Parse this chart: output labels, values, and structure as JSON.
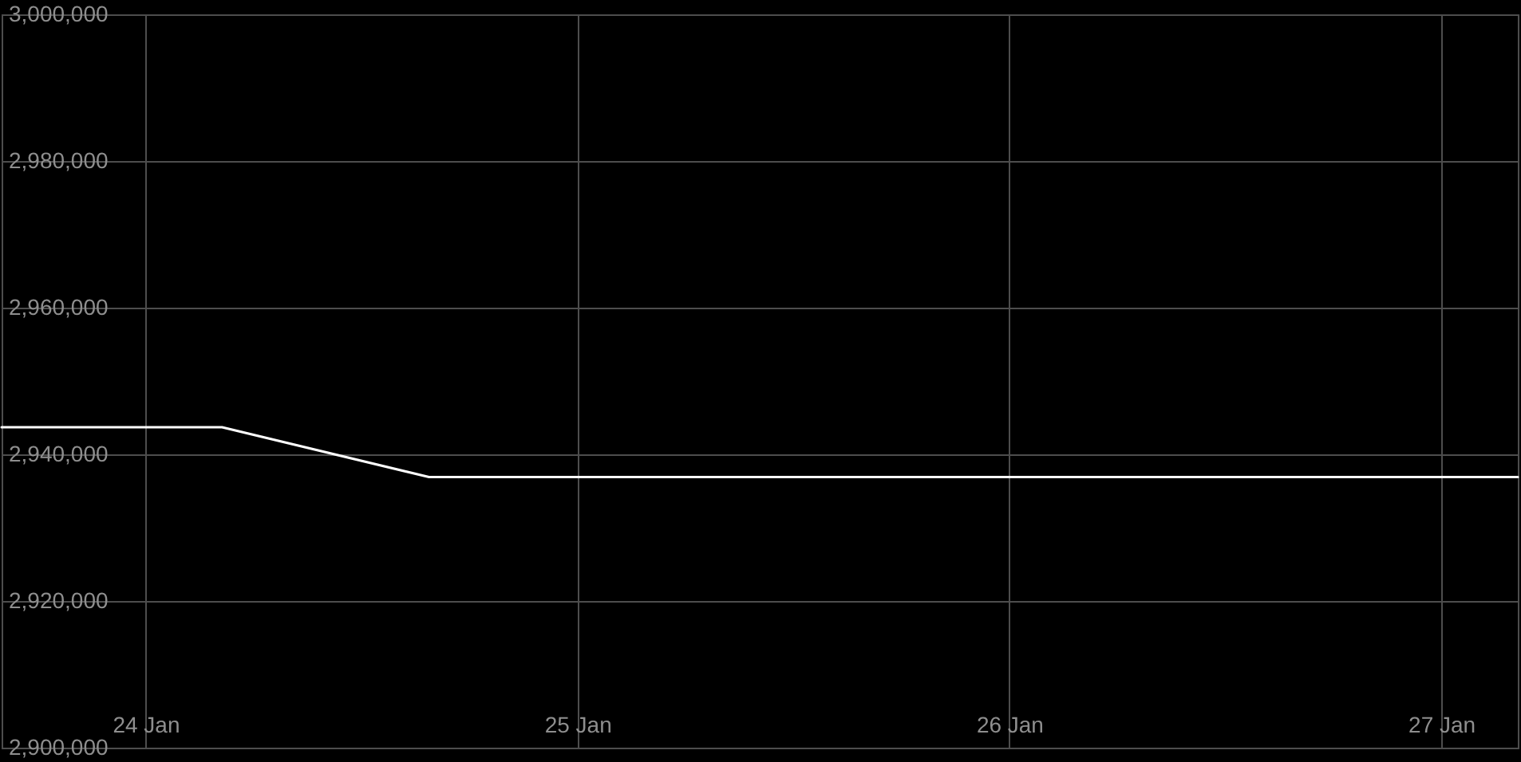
{
  "chart_data": {
    "type": "line",
    "x": [
      "--01-23T16:00",
      "--01-24T04:15",
      "--01-24T15:45",
      "--01-27T04:15"
    ],
    "values": [
      2943700,
      2943700,
      2936900,
      2936900
    ],
    "color": "#ffffff",
    "xlim": [
      "--01-23T16:00",
      "--01-27T04:15"
    ],
    "xticks": [
      {
        "value": "--01-24",
        "label": "24 Jan"
      },
      {
        "value": "--01-25",
        "label": "25 Jan"
      },
      {
        "value": "--01-26",
        "label": "26 Jan"
      },
      {
        "value": "--01-27",
        "label": "27 Jan"
      }
    ],
    "ylim": [
      2900000,
      3000000
    ],
    "yticks": [
      {
        "value": 2900000,
        "label": "2,900,000"
      },
      {
        "value": 2920000,
        "label": "2,920,000"
      },
      {
        "value": 2940000,
        "label": "2,940,000"
      },
      {
        "value": 2960000,
        "label": "2,960,000"
      },
      {
        "value": 2980000,
        "label": "2,980,000"
      },
      {
        "value": 3000000,
        "label": "3,000,000"
      }
    ],
    "grid": true
  }
}
